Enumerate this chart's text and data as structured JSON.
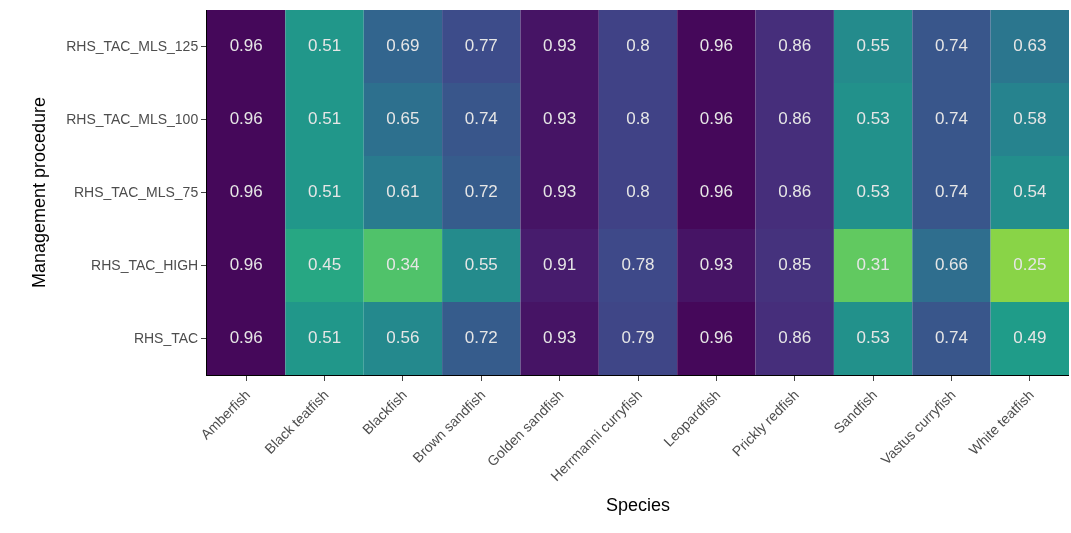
{
  "chart_data": {
    "type": "heatmap",
    "data_labels": true,
    "xlabel": "Species",
    "ylabel": "Management procedure",
    "categories": [
      "Amberfish",
      "Black teatfish",
      "Blackfish",
      "Brown sandfish",
      "Golden sandfish",
      "Herrmanni curryfish",
      "Leopardfish",
      "Prickly redfish",
      "Sandfish",
      "Vastus curryfish",
      "White teatfish"
    ],
    "y_categories": [
      "RHS_TAC_MLS_125",
      "RHS_TAC_MLS_100",
      "RHS_TAC_MLS_75",
      "RHS_TAC_HIGH",
      "RHS_TAC"
    ],
    "cells": [
      [
        0.96,
        0.51,
        0.69,
        0.77,
        0.93,
        0.8,
        0.96,
        0.86,
        0.55,
        0.74,
        0.63
      ],
      [
        0.96,
        0.51,
        0.65,
        0.74,
        0.93,
        0.8,
        0.96,
        0.86,
        0.53,
        0.74,
        0.58
      ],
      [
        0.96,
        0.51,
        0.61,
        0.72,
        0.93,
        0.8,
        0.96,
        0.86,
        0.53,
        0.74,
        0.54
      ],
      [
        0.96,
        0.45,
        0.34,
        0.55,
        0.91,
        0.78,
        0.93,
        0.85,
        0.31,
        0.66,
        0.25
      ],
      [
        0.96,
        0.51,
        0.56,
        0.72,
        0.93,
        0.79,
        0.96,
        0.86,
        0.53,
        0.74,
        0.49
      ]
    ]
  }
}
